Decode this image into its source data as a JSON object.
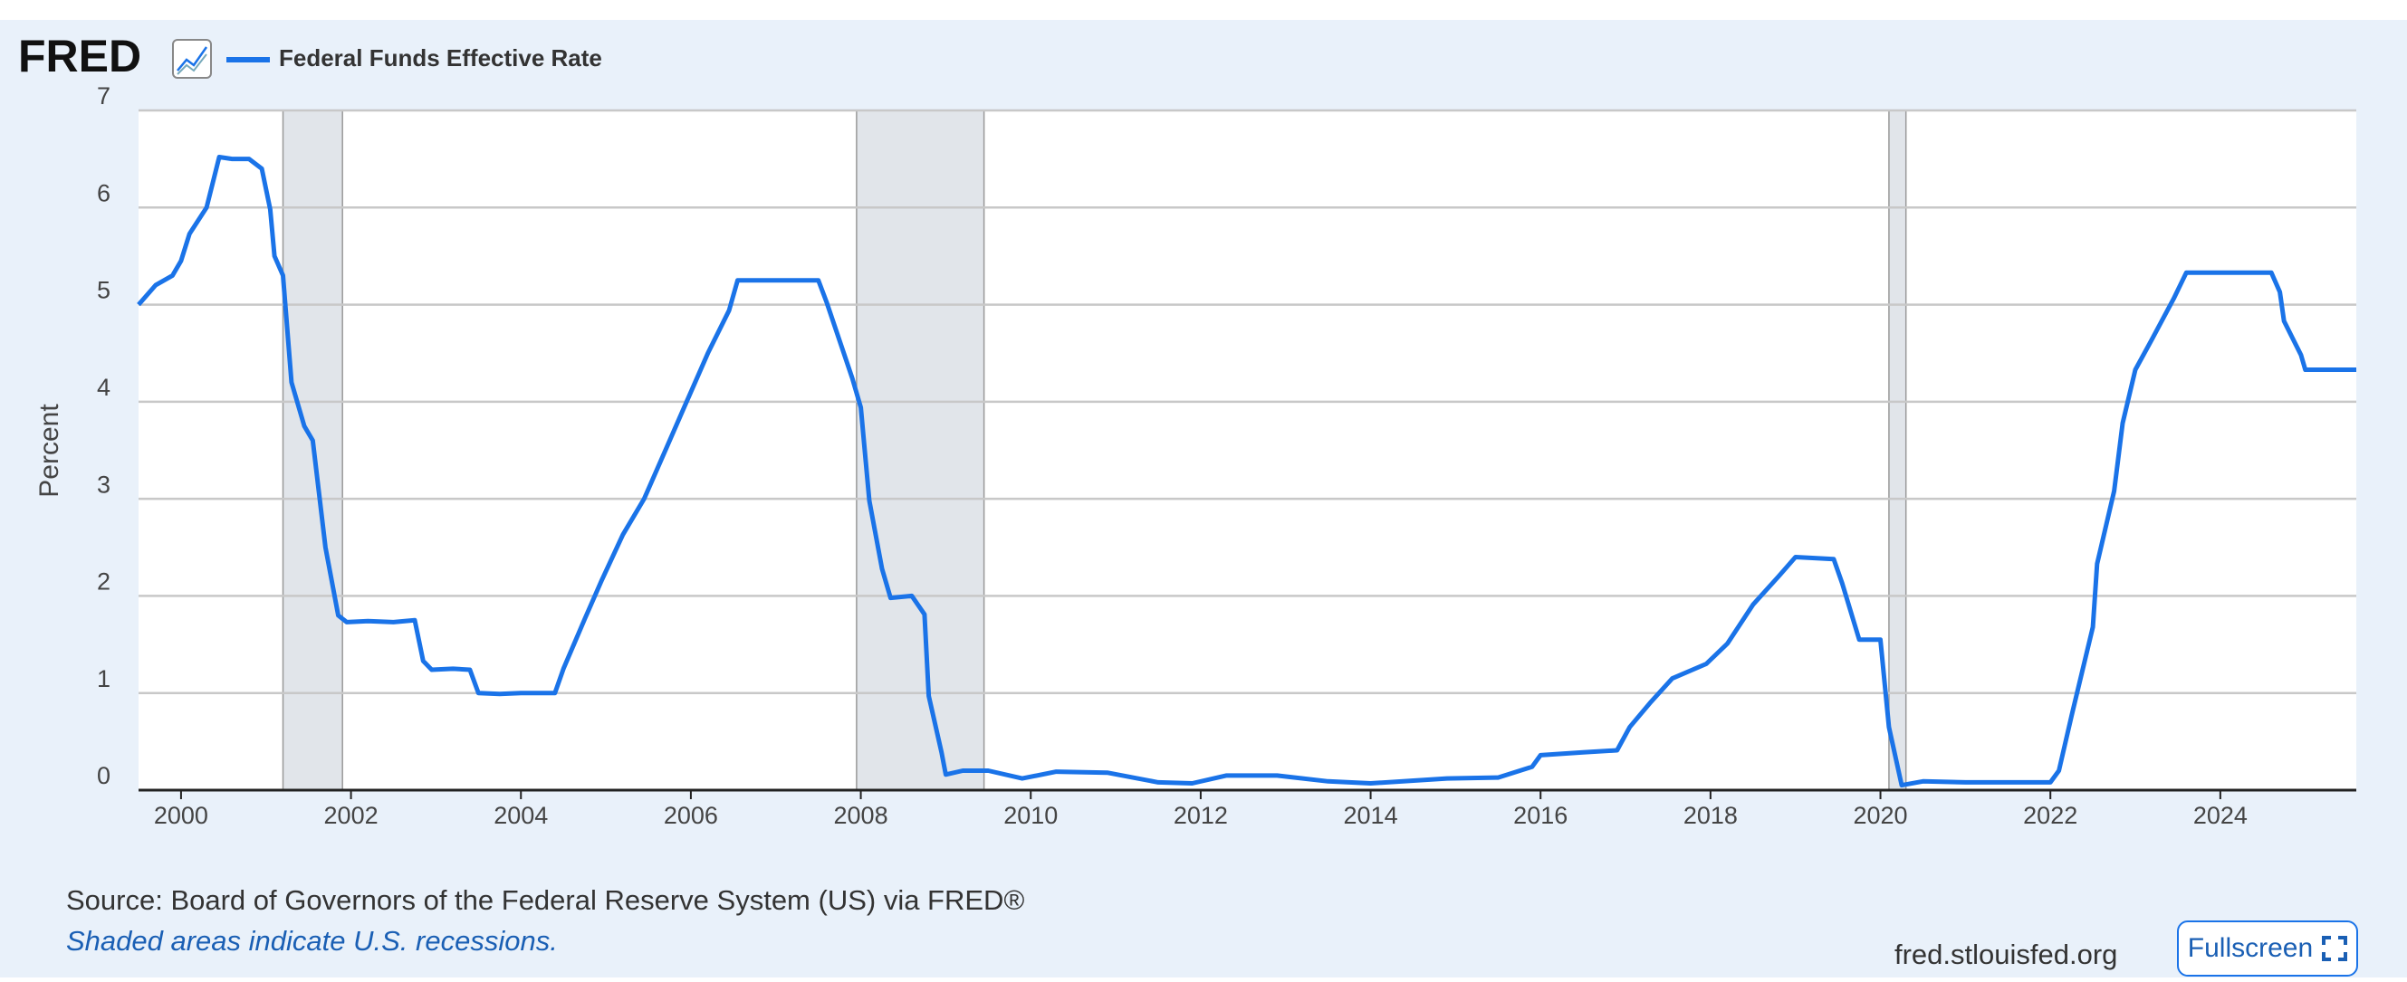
{
  "logo": "FRED",
  "chart_data": {
    "type": "line",
    "y_label": "Percent",
    "x": [
      1999.5,
      1999.7,
      1999.9,
      2000.0,
      2000.1,
      2000.3,
      2000.45,
      2000.6,
      2000.8,
      2000.95,
      2001.05,
      2001.1,
      2001.2,
      2001.3,
      2001.45,
      2001.55,
      2001.7,
      2001.85,
      2001.95,
      2002.2,
      2002.5,
      2002.75,
      2002.85,
      2002.95,
      2003.2,
      2003.4,
      2003.5,
      2003.75,
      2004.0,
      2004.4,
      2004.5,
      2004.75,
      2004.95,
      2005.2,
      2005.45,
      2005.7,
      2005.95,
      2006.2,
      2006.45,
      2006.55,
      2007.0,
      2007.5,
      2007.6,
      2007.8,
      2007.9,
      2008.0,
      2008.1,
      2008.25,
      2008.35,
      2008.6,
      2008.75,
      2008.8,
      2008.95,
      2009.0,
      2009.2,
      2009.5,
      2009.9,
      2010.3,
      2010.9,
      2011.5,
      2011.9,
      2012.3,
      2012.9,
      2013.5,
      2014.0,
      2014.9,
      2015.5,
      2015.9,
      2016.0,
      2016.5,
      2016.9,
      2017.05,
      2017.3,
      2017.55,
      2017.95,
      2018.2,
      2018.5,
      2018.8,
      2019.0,
      2019.45,
      2019.55,
      2019.75,
      2020.0,
      2020.1,
      2020.25,
      2020.5,
      2021.0,
      2021.5,
      2022.0,
      2022.1,
      2022.25,
      2022.5,
      2022.55,
      2022.75,
      2022.85,
      2023.0,
      2023.2,
      2023.45,
      2023.6,
      2024.0,
      2024.6,
      2024.7,
      2024.75,
      2024.95,
      2025.0,
      2025.6
    ],
    "series": [
      {
        "name": "Federal Funds Effective Rate",
        "color": "#1a73e8",
        "values": [
          5.0,
          5.2,
          5.3,
          5.45,
          5.73,
          6.0,
          6.52,
          6.5,
          6.5,
          6.4,
          5.98,
          5.5,
          5.3,
          4.2,
          3.75,
          3.6,
          2.5,
          1.8,
          1.73,
          1.74,
          1.73,
          1.75,
          1.33,
          1.24,
          1.25,
          1.24,
          1.0,
          0.99,
          1.0,
          1.0,
          1.25,
          1.76,
          2.16,
          2.63,
          3.0,
          3.5,
          4.0,
          4.5,
          4.94,
          5.25,
          5.25,
          5.25,
          5.02,
          4.5,
          4.24,
          3.94,
          2.98,
          2.28,
          1.98,
          2.0,
          1.81,
          0.97,
          0.39,
          0.16,
          0.2,
          0.2,
          0.12,
          0.19,
          0.18,
          0.08,
          0.07,
          0.15,
          0.15,
          0.09,
          0.07,
          0.12,
          0.13,
          0.24,
          0.36,
          0.39,
          0.41,
          0.65,
          0.91,
          1.15,
          1.3,
          1.51,
          1.91,
          2.2,
          2.4,
          2.38,
          2.13,
          1.55,
          1.55,
          0.65,
          0.05,
          0.09,
          0.08,
          0.08,
          0.08,
          0.2,
          0.77,
          1.68,
          2.33,
          3.08,
          3.78,
          4.33,
          4.65,
          5.06,
          5.33,
          5.33,
          5.33,
          5.13,
          4.83,
          4.48,
          4.33,
          4.33
        ]
      }
    ],
    "recessions": [
      [
        2001.2,
        2001.9
      ],
      [
        2007.95,
        2009.45
      ],
      [
        2020.1,
        2020.3
      ]
    ],
    "recession_color": "#e1e5ea",
    "xlim": [
      1999.5,
      2025.6
    ],
    "xticks": [
      2000,
      2002,
      2004,
      2006,
      2008,
      2010,
      2012,
      2014,
      2016,
      2018,
      2020,
      2022,
      2024
    ],
    "ylim": [
      0,
      7
    ],
    "yticks": [
      0,
      1,
      2,
      3,
      4,
      5,
      6,
      7
    ],
    "grid": true
  },
  "source": "Source: Board of Governors of the Federal Reserve System (US) via FRED®",
  "note": "Shaded areas indicate U.S. recessions.",
  "site": "fred.stlouisfed.org",
  "button": "Fullscreen"
}
